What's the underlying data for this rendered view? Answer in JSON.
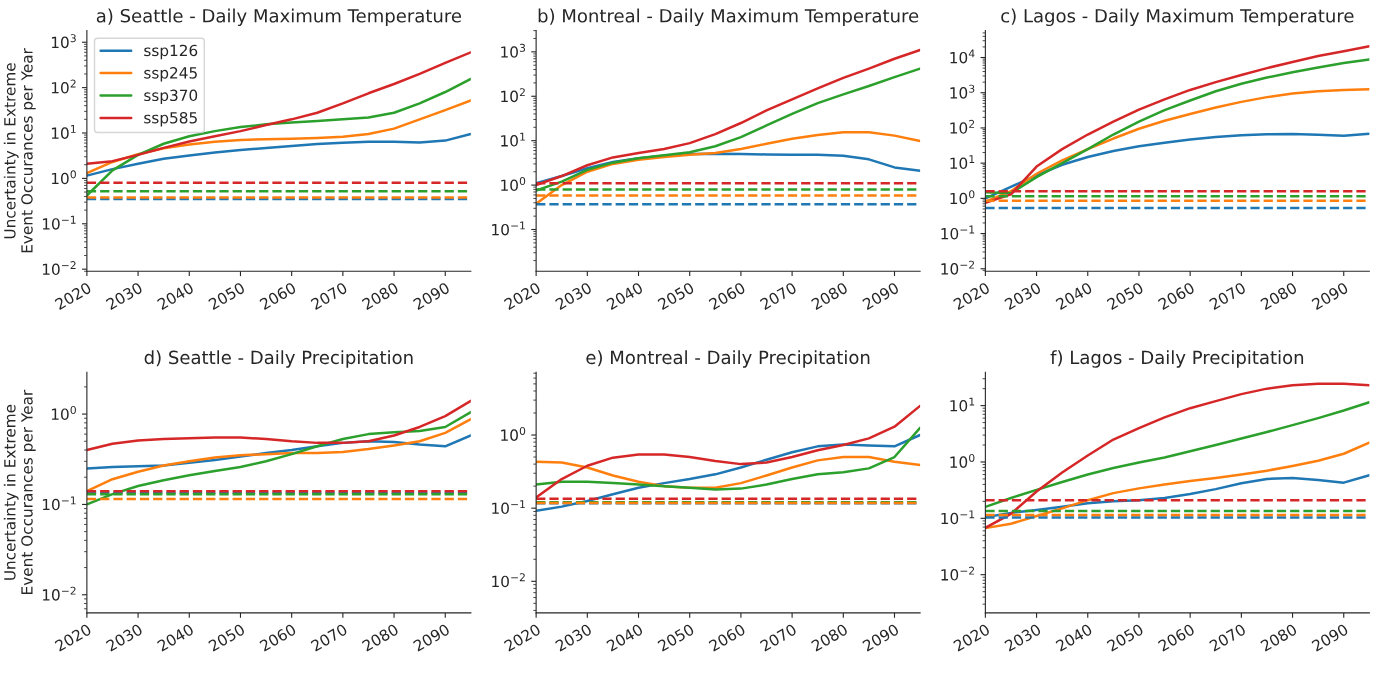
{
  "chart_data": [
    {
      "type": "line",
      "title": "a) Seattle - Daily Maximum Temperature",
      "ylabel": "Uncertainty in Extreme\nEvent Occurances per Year",
      "log": "y",
      "legend": "top left",
      "x": [
        2020,
        2025,
        2030,
        2035,
        2040,
        2045,
        2050,
        2055,
        2060,
        2065,
        2070,
        2075,
        2080,
        2085,
        2090,
        2095
      ],
      "xlim": [
        2020,
        2095
      ],
      "xticks": [
        2020,
        2030,
        2040,
        2050,
        2060,
        2070,
        2080,
        2090
      ],
      "ylim": [
        0.009,
        1800
      ],
      "yticks": [
        {
          "value": 0.01,
          "label": "10$^{−2}$"
        },
        {
          "value": 0.1,
          "label": "10$^{−1}$"
        },
        {
          "value": 1,
          "label": "10$^{0}$"
        },
        {
          "value": 10,
          "label": "10$^{1}$"
        },
        {
          "value": 100,
          "label": "10$^{2}$"
        },
        {
          "value": 1000,
          "label": "10$^{3}$"
        }
      ],
      "series": [
        {
          "name": "ssp126",
          "color": "#1f77b4",
          "values": [
            1.15,
            1.6,
            2.1,
            2.7,
            3.2,
            3.7,
            4.2,
            4.7,
            5.2,
            5.7,
            6.1,
            6.4,
            6.4,
            6.2,
            6.8,
            9.5
          ]
        },
        {
          "name": "ssp245",
          "color": "#ff7f0e",
          "values": [
            1.3,
            2.3,
            3.4,
            4.6,
            5.6,
            6.4,
            7.0,
            7.3,
            7.5,
            7.8,
            8.3,
            9.5,
            12.5,
            20,
            32,
            52
          ]
        },
        {
          "name": "ssp370",
          "color": "#2ca02c",
          "values": [
            0.42,
            1.5,
            3.3,
            5.8,
            8.5,
            11,
            13.5,
            15.5,
            17,
            18.5,
            20,
            22,
            28,
            45,
            80,
            155
          ]
        },
        {
          "name": "ssp585",
          "color": "#d62728",
          "values": [
            2.1,
            2.4,
            3.3,
            4.7,
            6.5,
            8.5,
            11,
            15,
            20,
            28,
            45,
            75,
            120,
            200,
            350,
            600
          ]
        }
      ],
      "ref_lines": [
        {
          "axis": "y",
          "value": 0.35,
          "color": "#1f77b4",
          "line_style": "dashed"
        },
        {
          "axis": "y",
          "value": 0.38,
          "color": "#ff7f0e",
          "line_style": "dashed"
        },
        {
          "axis": "y",
          "value": 0.52,
          "color": "#2ca02c",
          "line_style": "dashed"
        },
        {
          "axis": "y",
          "value": 0.8,
          "color": "#d62728",
          "line_style": "dashed"
        }
      ]
    },
    {
      "type": "line",
      "title": "b) Montreal - Daily Maximum Temperature",
      "log": "y",
      "x": [
        2020,
        2025,
        2030,
        2035,
        2040,
        2045,
        2050,
        2055,
        2060,
        2065,
        2070,
        2075,
        2080,
        2085,
        2090,
        2095
      ],
      "xlim": [
        2020,
        2095
      ],
      "xticks": [
        2020,
        2030,
        2040,
        2050,
        2060,
        2070,
        2080,
        2090
      ],
      "ylim": [
        0.0115,
        3000
      ],
      "yticks": [
        {
          "value": 0.1,
          "label": "10$^{−1}$"
        },
        {
          "value": 1,
          "label": "10$^{0}$"
        },
        {
          "value": 10,
          "label": "10$^{1}$"
        },
        {
          "value": 100,
          "label": "10$^{2}$"
        },
        {
          "value": 1000,
          "label": "10$^{3}$"
        }
      ],
      "series": [
        {
          "color": "#1f77b4",
          "values": [
            1.1,
            1.6,
            2.4,
            3.3,
            4.0,
            4.6,
            5.0,
            5.1,
            5.0,
            4.9,
            4.8,
            4.8,
            4.6,
            3.8,
            2.5,
            2.1
          ]
        },
        {
          "color": "#ff7f0e",
          "values": [
            0.38,
            1.0,
            2.0,
            3.0,
            3.7,
            4.3,
            4.8,
            5.3,
            6.5,
            8.5,
            11,
            13.5,
            15.5,
            15.5,
            13,
            9.8
          ]
        },
        {
          "color": "#2ca02c",
          "values": [
            0.75,
            1.2,
            2.2,
            3.2,
            4.0,
            4.7,
            5.5,
            7.5,
            12,
            22,
            40,
            70,
            110,
            170,
            270,
            420
          ]
        },
        {
          "color": "#d62728",
          "values": [
            1.0,
            1.6,
            2.8,
            4.2,
            5.3,
            6.5,
            8.8,
            14,
            25,
            48,
            85,
            150,
            260,
            420,
            700,
            1100
          ]
        }
      ],
      "ref_lines": [
        {
          "axis": "y",
          "value": 0.37,
          "color": "#1f77b4",
          "line_style": "dashed"
        },
        {
          "axis": "y",
          "value": 0.58,
          "color": "#ff7f0e",
          "line_style": "dashed"
        },
        {
          "axis": "y",
          "value": 0.8,
          "color": "#2ca02c",
          "line_style": "dashed"
        },
        {
          "axis": "y",
          "value": 1.1,
          "color": "#d62728",
          "line_style": "dashed"
        }
      ]
    },
    {
      "type": "line",
      "title": "c) Lagos - Daily Maximum Temperature",
      "log": "y",
      "x": [
        2020,
        2025,
        2030,
        2035,
        2040,
        2045,
        2050,
        2055,
        2060,
        2065,
        2070,
        2075,
        2080,
        2085,
        2090,
        2095
      ],
      "xlim": [
        2020,
        2095
      ],
      "xticks": [
        2020,
        2030,
        2040,
        2050,
        2060,
        2070,
        2080,
        2090
      ],
      "ylim": [
        0.0085,
        58000
      ],
      "yticks": [
        {
          "value": 0.01,
          "label": "10$^{−2}$"
        },
        {
          "value": 0.1,
          "label": "10$^{−1}$"
        },
        {
          "value": 1,
          "label": "10$^{0}$"
        },
        {
          "value": 10,
          "label": "10$^{1}$"
        },
        {
          "value": 100,
          "label": "10$^{2}$"
        },
        {
          "value": 1000,
          "label": "10$^{3}$"
        },
        {
          "value": 10000,
          "label": "10$^{4}$"
        }
      ],
      "series": [
        {
          "color": "#1f77b4",
          "values": [
            1.0,
            null,
            4.5,
            9,
            15,
            22,
            30,
            38,
            47,
            55,
            62,
            66,
            67,
            64,
            60,
            68
          ]
        },
        {
          "color": "#ff7f0e",
          "values": [
            0.8,
            1.6,
            5,
            12,
            25,
            50,
            95,
            160,
            250,
            380,
            550,
            750,
            950,
            1100,
            1200,
            1250
          ]
        },
        {
          "color": "#2ca02c",
          "values": [
            1.5,
            1.4,
            4,
            10,
            25,
            65,
            150,
            320,
            600,
            1100,
            1800,
            2700,
            3800,
            5200,
            7000,
            8800
          ]
        },
        {
          "color": "#d62728",
          "values": [
            0.75,
            1.3,
            8,
            25,
            65,
            150,
            330,
            650,
            1200,
            2000,
            3200,
            5000,
            7500,
            11000,
            15000,
            21000
          ]
        }
      ],
      "ref_lines": [
        {
          "axis": "y",
          "value": 0.53,
          "color": "#1f77b4",
          "line_style": "dashed"
        },
        {
          "axis": "y",
          "value": 0.85,
          "color": "#ff7f0e",
          "line_style": "dashed"
        },
        {
          "axis": "y",
          "value": 1.15,
          "color": "#2ca02c",
          "line_style": "dashed"
        },
        {
          "axis": "y",
          "value": 1.6,
          "color": "#d62728",
          "line_style": "dashed"
        }
      ]
    },
    {
      "type": "line",
      "title": "d) Seattle - Daily Precipitation",
      "ylabel": "Uncertainty in Extreme\nEvent Occurances per Year",
      "log": "y",
      "x": [
        2020,
        2025,
        2030,
        2035,
        2040,
        2045,
        2050,
        2055,
        2060,
        2065,
        2070,
        2075,
        2080,
        2085,
        2090,
        2095
      ],
      "xlim": [
        2020,
        2095
      ],
      "xticks": [
        2020,
        2030,
        2040,
        2050,
        2060,
        2070,
        2080,
        2090
      ],
      "ylim": [
        0.0063,
        2.9
      ],
      "yticks": [
        {
          "value": 0.01,
          "label": "10$^{−2}$"
        },
        {
          "value": 0.1,
          "label": "10$^{−1}$"
        },
        {
          "value": 1,
          "label": "10$^{0}$"
        }
      ],
      "series": [
        {
          "color": "#1f77b4",
          "values": [
            0.25,
            0.26,
            0.265,
            0.27,
            0.29,
            0.31,
            0.34,
            0.37,
            0.4,
            0.44,
            0.48,
            0.5,
            0.49,
            0.46,
            0.44,
            0.58
          ]
        },
        {
          "color": "#ff7f0e",
          "values": [
            0.14,
            0.19,
            0.23,
            0.27,
            0.3,
            0.33,
            0.35,
            0.36,
            0.37,
            0.37,
            0.38,
            0.41,
            0.45,
            0.5,
            0.62,
            0.88
          ]
        },
        {
          "color": "#2ca02c",
          "values": [
            0.1,
            0.13,
            0.16,
            0.185,
            0.21,
            0.235,
            0.26,
            0.3,
            0.36,
            0.44,
            0.53,
            0.6,
            0.63,
            0.65,
            0.72,
            1.05
          ]
        },
        {
          "color": "#d62728",
          "values": [
            0.4,
            0.47,
            0.51,
            0.53,
            0.54,
            0.55,
            0.55,
            0.53,
            0.5,
            0.48,
            0.48,
            0.5,
            0.58,
            0.72,
            0.95,
            1.4
          ]
        }
      ],
      "ref_lines": [
        {
          "axis": "y",
          "value": 0.135,
          "color": "#1f77b4",
          "line_style": "dashed"
        },
        {
          "axis": "y",
          "value": 0.115,
          "color": "#ff7f0e",
          "line_style": "dashed"
        },
        {
          "axis": "y",
          "value": 0.13,
          "color": "#2ca02c",
          "line_style": "dashed"
        },
        {
          "axis": "y",
          "value": 0.14,
          "color": "#d62728",
          "line_style": "dashed"
        }
      ]
    },
    {
      "type": "line",
      "title": "e) Montreal - Daily Precipitation",
      "log": "y",
      "x": [
        2020,
        2025,
        2030,
        2035,
        2040,
        2045,
        2050,
        2055,
        2060,
        2065,
        2070,
        2075,
        2080,
        2085,
        2090,
        2095
      ],
      "xlim": [
        2020,
        2095
      ],
      "xticks": [
        2020,
        2030,
        2040,
        2050,
        2060,
        2070,
        2080,
        2090
      ],
      "ylim": [
        0.0037,
        7.2
      ],
      "yticks": [
        {
          "value": 0.01,
          "label": "10$^{−2}$"
        },
        {
          "value": 0.1,
          "label": "10$^{−1}$"
        },
        {
          "value": 1,
          "label": "10$^{0}$"
        }
      ],
      "series": [
        {
          "color": "#1f77b4",
          "values": [
            0.092,
            0.105,
            0.125,
            0.155,
            0.19,
            0.22,
            0.25,
            0.29,
            0.36,
            0.46,
            0.58,
            0.7,
            0.74,
            0.72,
            0.7,
            1.0
          ]
        },
        {
          "color": "#ff7f0e",
          "values": [
            0.43,
            0.42,
            0.36,
            0.28,
            0.23,
            0.2,
            0.19,
            0.19,
            0.22,
            0.28,
            0.36,
            0.45,
            0.5,
            0.5,
            0.43,
            0.39
          ]
        },
        {
          "color": "#2ca02c",
          "values": [
            0.21,
            0.23,
            0.23,
            0.22,
            0.21,
            0.2,
            0.19,
            0.18,
            0.185,
            0.21,
            0.25,
            0.29,
            0.31,
            0.35,
            0.5,
            1.25
          ]
        },
        {
          "color": "#d62728",
          "values": [
            0.14,
            0.25,
            0.38,
            0.49,
            0.54,
            0.54,
            0.5,
            0.44,
            0.4,
            0.42,
            0.5,
            0.62,
            0.73,
            0.9,
            1.3,
            2.5
          ]
        }
      ],
      "ref_lines": [
        {
          "axis": "y",
          "value": 0.117,
          "color": "#1f77b4",
          "line_style": "dashed"
        },
        {
          "axis": "y",
          "value": 0.12,
          "color": "#2ca02c",
          "line_style": "dashed"
        },
        {
          "axis": "y",
          "value": 0.118,
          "color": "#ff7f0e",
          "line_style": "dashed"
        },
        {
          "axis": "y",
          "value": 0.135,
          "color": "#d62728",
          "line_style": "dashed"
        }
      ]
    },
    {
      "type": "line",
      "title": "f) Lagos - Daily Precipitation",
      "log": "y",
      "x": [
        2020,
        2025,
        2030,
        2035,
        2040,
        2045,
        2050,
        2055,
        2060,
        2065,
        2070,
        2075,
        2080,
        2085,
        2090,
        2095
      ],
      "xlim": [
        2020,
        2095
      ],
      "xticks": [
        2020,
        2030,
        2040,
        2050,
        2060,
        2070,
        2080,
        2090
      ],
      "ylim": [
        0.0021,
        39
      ],
      "yticks": [
        {
          "value": 0.01,
          "label": "10$^{−2}$"
        },
        {
          "value": 0.1,
          "label": "10$^{−1}$"
        },
        {
          "value": 1,
          "label": "10$^{0}$"
        },
        {
          "value": 10,
          "label": "10$^{1}$"
        }
      ],
      "series": [
        {
          "color": "#1f77b4",
          "values": [
            0.105,
            0.125,
            0.14,
            0.16,
            0.185,
            0.2,
            0.21,
            0.23,
            0.27,
            0.33,
            0.42,
            0.5,
            0.52,
            0.48,
            0.43,
            0.58
          ]
        },
        {
          "color": "#ff7f0e",
          "values": [
            0.067,
            0.08,
            0.11,
            0.15,
            0.21,
            0.28,
            0.34,
            0.4,
            0.46,
            0.52,
            0.6,
            0.7,
            0.85,
            1.05,
            1.4,
            2.2
          ]
        },
        {
          "color": "#2ca02c",
          "values": [
            0.16,
            0.23,
            0.32,
            0.44,
            0.6,
            0.78,
            0.98,
            1.2,
            1.55,
            2.0,
            2.6,
            3.4,
            4.5,
            6,
            8.2,
            11.5
          ]
        },
        {
          "color": "#d62728",
          "values": [
            0.068,
            0.12,
            0.3,
            0.65,
            1.3,
            2.5,
            4.0,
            6.2,
            9,
            12,
            16,
            20,
            23,
            24.5,
            24.5,
            23
          ]
        }
      ],
      "ref_lines": [
        {
          "axis": "y",
          "value": 0.104,
          "color": "#1f77b4",
          "line_style": "dashed"
        },
        {
          "axis": "y",
          "value": 0.115,
          "color": "#ff7f0e",
          "line_style": "dashed"
        },
        {
          "axis": "y",
          "value": 0.135,
          "color": "#2ca02c",
          "line_style": "dashed"
        },
        {
          "axis": "y",
          "value": 0.21,
          "color": "#d62728",
          "line_style": "dashed"
        }
      ]
    }
  ]
}
